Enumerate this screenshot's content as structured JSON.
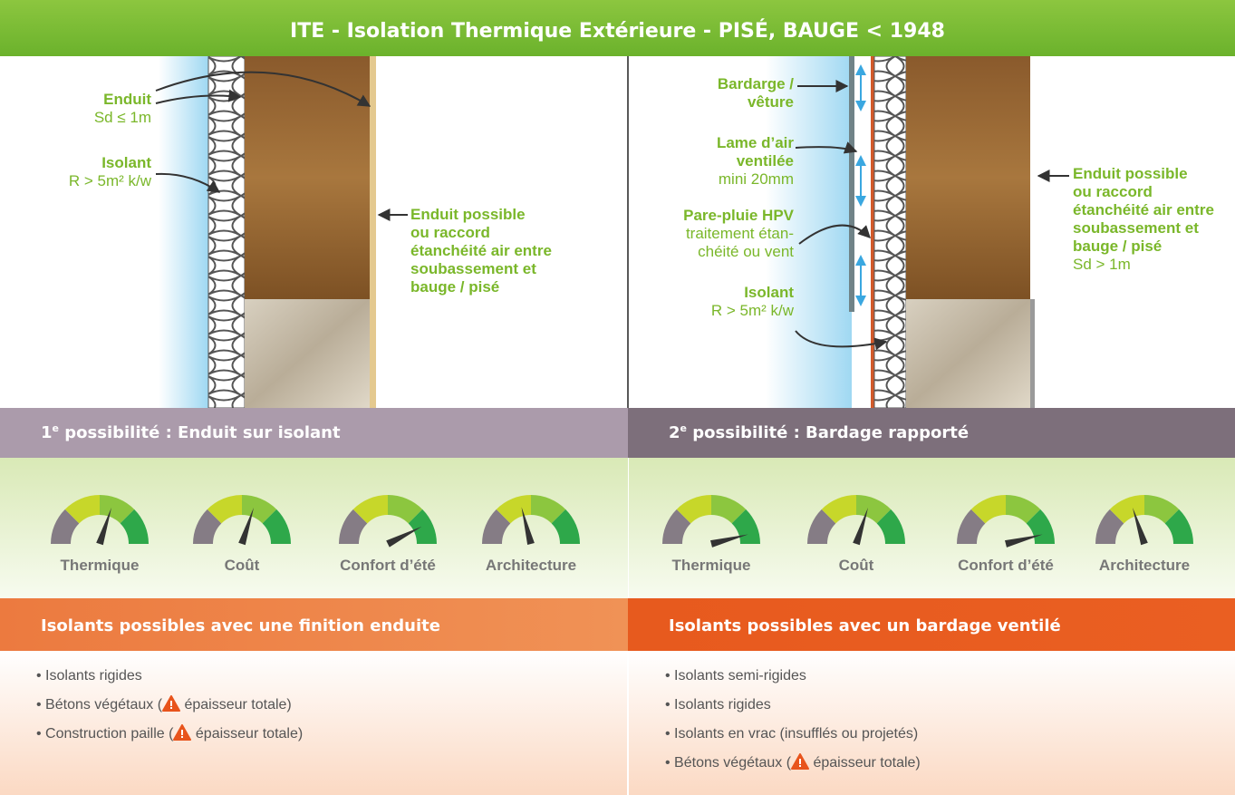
{
  "title": "ITE - Isolation Thermique Extérieure - PISÉ, BAUGE < 1948",
  "left": {
    "labels": {
      "enduit": "Enduit",
      "enduit_sd": "Sd ≤ 1m",
      "isolant": "Isolant",
      "isolant_r": "R > 5m² k/w",
      "callout": [
        "Enduit possible",
        "ou raccord",
        "étanchéité air entre",
        "soubassement et",
        "bauge / pisé"
      ]
    },
    "heading": {
      "number": "1",
      "sup": "e",
      "text": " possibilité : Enduit sur isolant"
    },
    "gauges": [
      {
        "label": "Thermique",
        "level": 0.6
      },
      {
        "label": "Coût",
        "level": 0.6
      },
      {
        "label": "Confort d’été",
        "level": 0.85
      },
      {
        "label": "Architecture",
        "level": 0.42
      }
    ],
    "list_title": "Isolants possibles avec une finition enduite",
    "items": [
      {
        "text": "• Isolants rigides"
      },
      {
        "text": "• Bétons végétaux (",
        "after": " épaisseur totale)"
      },
      {
        "text": "• Construction paille (",
        "after": " épaisseur totale)"
      }
    ]
  },
  "right": {
    "labels": {
      "bardage": [
        "Bardarge /",
        "vêture"
      ],
      "lame": [
        "Lame d’air",
        "ventilée"
      ],
      "lame_min": "mini 20mm",
      "pare_pluie": "Pare-pluie HPV",
      "pare_pluie_note": [
        "traitement étan-",
        "chéité ou vent"
      ],
      "isolant": "Isolant",
      "isolant_r": "R > 5m² k/w",
      "callout": [
        "Enduit possible",
        "ou raccord",
        "étanchéité air entre",
        "soubassement et",
        "bauge / pisé"
      ],
      "callout_sd": "Sd > 1m"
    },
    "heading": {
      "number": "2",
      "sup": "e",
      "text": " possibilité : Bardage rapporté"
    },
    "gauges": [
      {
        "label": "Thermique",
        "level": 0.92
      },
      {
        "label": "Coût",
        "level": 0.6
      },
      {
        "label": "Confort d’été",
        "level": 0.92
      },
      {
        "label": "Architecture",
        "level": 0.4
      }
    ],
    "list_title": "Isolants possibles avec un bardage ventilé",
    "items": [
      {
        "text": "• Isolants semi-rigides"
      },
      {
        "text": "• Isolants rigides"
      },
      {
        "text": "• Isolants en vrac (insufflés ou projetés)"
      },
      {
        "text": "• Bétons végétaux (",
        "after": " épaisseur totale)"
      }
    ]
  }
}
